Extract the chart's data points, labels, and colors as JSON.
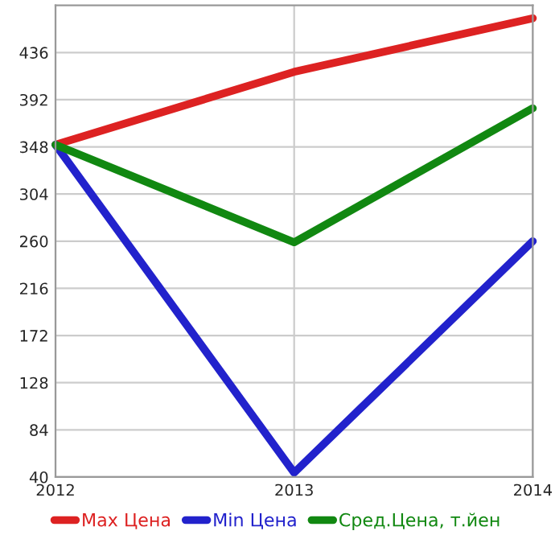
{
  "chart_data": {
    "type": "line",
    "x": [
      2012,
      2013,
      2014
    ],
    "xlim": [
      2012,
      2014
    ],
    "xticks": [
      2012,
      2013,
      2014
    ],
    "ylim": [
      40,
      480
    ],
    "yticks": [
      40,
      84,
      128,
      172,
      216,
      260,
      304,
      348,
      392,
      436
    ],
    "grid": true,
    "legend": "bottom",
    "marker": "none",
    "line_style": "solid",
    "series": [
      {
        "name": "Max Цена",
        "color": "#dd2222",
        "values": [
          350,
          418,
          468
        ]
      },
      {
        "name": "Min Цена",
        "color": "#2222cc",
        "values": [
          350,
          44,
          260
        ]
      },
      {
        "name": "Сред.Цена, т.йен",
        "color": "#118811",
        "values": [
          350,
          259,
          384
        ]
      }
    ]
  }
}
